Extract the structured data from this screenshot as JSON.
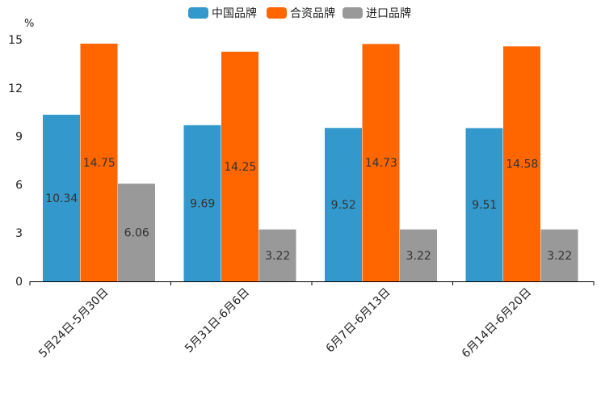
{
  "chart_data": {
    "type": "bar",
    "title": "",
    "ylabel": "%",
    "xlabel": "",
    "ylim": [
      0,
      15
    ],
    "yticks": [
      0,
      3,
      6,
      9,
      12,
      15
    ],
    "grid": false,
    "legend_position": "top-center",
    "categories": [
      "5月24日-5月30日",
      "5月31日-6月6日",
      "6月7日-6月13日",
      "6月14日-6月20日"
    ],
    "series": [
      {
        "name": "中国品牌",
        "color": "#3399CC",
        "values": [
          10.34,
          9.69,
          9.52,
          9.51
        ],
        "labels": [
          "10.34",
          "9.69",
          "9.52",
          "9.51"
        ]
      },
      {
        "name": "合资品牌",
        "color": "#FF6600",
        "values": [
          14.75,
          14.25,
          14.73,
          14.58
        ],
        "labels": [
          "14.75",
          "14.25",
          "14.73",
          "14.58"
        ]
      },
      {
        "name": "进口品牌",
        "color": "#999999",
        "values": [
          6.06,
          3.22,
          3.22,
          3.22
        ],
        "labels": [
          "6.06",
          "3.22",
          "3.22",
          "3.22"
        ]
      }
    ]
  }
}
